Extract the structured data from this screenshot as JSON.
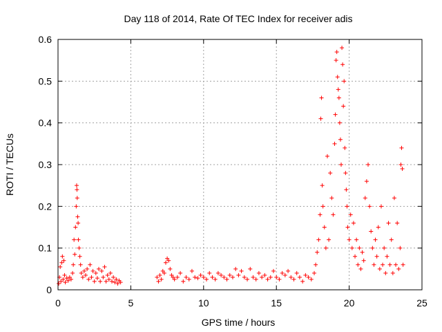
{
  "chart_data": {
    "type": "scatter",
    "title": "Day 118 of 2014, Rate Of TEC Index for receiver adis",
    "xlabel": "GPS time / hours",
    "ylabel": "ROTI / TECUs",
    "xlim": [
      0,
      25
    ],
    "ylim": [
      0,
      0.6
    ],
    "x_ticks": [
      0,
      5,
      10,
      15,
      20,
      25
    ],
    "x_tick_labels": [
      "0",
      "5",
      "10",
      "15",
      "20",
      "25"
    ],
    "y_ticks": [
      0,
      0.1,
      0.2,
      0.3,
      0.4,
      0.5,
      0.6
    ],
    "y_tick_labels": [
      "0",
      "0.1",
      "0.2",
      "0.3",
      "0.4",
      "0.5",
      "0.6"
    ],
    "grid": true,
    "marker": "+",
    "series": [
      {
        "name": "ROTI",
        "color": "#ff0000",
        "points": [
          [
            0.05,
            0.015
          ],
          [
            0.1,
            0.03
          ],
          [
            0.15,
            0.055
          ],
          [
            0.2,
            0.02
          ],
          [
            0.25,
            0.065
          ],
          [
            0.3,
            0.08
          ],
          [
            0.35,
            0.025
          ],
          [
            0.4,
            0.07
          ],
          [
            0.45,
            0.035
          ],
          [
            0.5,
            0.018
          ],
          [
            0.6,
            0.028
          ],
          [
            0.7,
            0.022
          ],
          [
            0.8,
            0.03
          ],
          [
            0.9,
            0.025
          ],
          [
            1.0,
            0.04
          ],
          [
            1.05,
            0.06
          ],
          [
            1.1,
            0.12
          ],
          [
            1.15,
            0.085
          ],
          [
            1.2,
            0.15
          ],
          [
            1.25,
            0.2
          ],
          [
            1.28,
            0.25
          ],
          [
            1.3,
            0.24
          ],
          [
            1.32,
            0.22
          ],
          [
            1.35,
            0.175
          ],
          [
            1.38,
            0.16
          ],
          [
            1.4,
            0.12
          ],
          [
            1.45,
            0.1
          ],
          [
            1.5,
            0.08
          ],
          [
            1.55,
            0.06
          ],
          [
            1.6,
            0.04
          ],
          [
            1.7,
            0.03
          ],
          [
            1.8,
            0.045
          ],
          [
            1.9,
            0.035
          ],
          [
            2.0,
            0.05
          ],
          [
            2.1,
            0.025
          ],
          [
            2.2,
            0.06
          ],
          [
            2.3,
            0.03
          ],
          [
            2.4,
            0.045
          ],
          [
            2.5,
            0.02
          ],
          [
            2.6,
            0.04
          ],
          [
            2.7,
            0.028
          ],
          [
            2.8,
            0.05
          ],
          [
            2.9,
            0.02
          ],
          [
            3.0,
            0.045
          ],
          [
            3.1,
            0.03
          ],
          [
            3.2,
            0.055
          ],
          [
            3.3,
            0.02
          ],
          [
            3.4,
            0.035
          ],
          [
            3.5,
            0.025
          ],
          [
            3.6,
            0.04
          ],
          [
            3.7,
            0.02
          ],
          [
            3.8,
            0.03
          ],
          [
            3.9,
            0.018
          ],
          [
            4.0,
            0.025
          ],
          [
            4.1,
            0.015
          ],
          [
            4.2,
            0.022
          ],
          [
            4.3,
            0.018
          ],
          [
            6.8,
            0.03
          ],
          [
            6.9,
            0.02
          ],
          [
            7.0,
            0.035
          ],
          [
            7.1,
            0.025
          ],
          [
            7.2,
            0.045
          ],
          [
            7.3,
            0.04
          ],
          [
            7.4,
            0.065
          ],
          [
            7.5,
            0.075
          ],
          [
            7.6,
            0.07
          ],
          [
            7.7,
            0.05
          ],
          [
            7.8,
            0.035
          ],
          [
            7.9,
            0.03
          ],
          [
            8.0,
            0.025
          ],
          [
            8.2,
            0.03
          ],
          [
            8.4,
            0.04
          ],
          [
            8.6,
            0.02
          ],
          [
            8.8,
            0.03
          ],
          [
            9.0,
            0.025
          ],
          [
            9.2,
            0.045
          ],
          [
            9.4,
            0.03
          ],
          [
            9.6,
            0.028
          ],
          [
            9.8,
            0.035
          ],
          [
            10.0,
            0.03
          ],
          [
            10.2,
            0.025
          ],
          [
            10.4,
            0.04
          ],
          [
            10.6,
            0.03
          ],
          [
            10.8,
            0.025
          ],
          [
            11.0,
            0.04
          ],
          [
            11.2,
            0.035
          ],
          [
            11.4,
            0.03
          ],
          [
            11.6,
            0.025
          ],
          [
            11.8,
            0.035
          ],
          [
            12.0,
            0.03
          ],
          [
            12.2,
            0.05
          ],
          [
            12.4,
            0.035
          ],
          [
            12.6,
            0.045
          ],
          [
            12.8,
            0.03
          ],
          [
            13.0,
            0.025
          ],
          [
            13.2,
            0.05
          ],
          [
            13.4,
            0.03
          ],
          [
            13.6,
            0.025
          ],
          [
            13.8,
            0.04
          ],
          [
            14.0,
            0.03
          ],
          [
            14.2,
            0.035
          ],
          [
            14.4,
            0.025
          ],
          [
            14.6,
            0.03
          ],
          [
            14.8,
            0.045
          ],
          [
            15.0,
            0.03
          ],
          [
            15.2,
            0.025
          ],
          [
            15.4,
            0.04
          ],
          [
            15.6,
            0.035
          ],
          [
            15.8,
            0.045
          ],
          [
            16.0,
            0.03
          ],
          [
            16.2,
            0.025
          ],
          [
            16.4,
            0.04
          ],
          [
            16.6,
            0.03
          ],
          [
            16.8,
            0.02
          ],
          [
            17.0,
            0.035
          ],
          [
            17.2,
            0.03
          ],
          [
            17.4,
            0.025
          ],
          [
            17.6,
            0.04
          ],
          [
            17.7,
            0.06
          ],
          [
            17.8,
            0.09
          ],
          [
            17.9,
            0.12
          ],
          [
            18.0,
            0.18
          ],
          [
            18.05,
            0.41
          ],
          [
            18.1,
            0.46
          ],
          [
            18.15,
            0.25
          ],
          [
            18.2,
            0.2
          ],
          [
            18.3,
            0.15
          ],
          [
            18.4,
            0.1
          ],
          [
            18.5,
            0.32
          ],
          [
            18.6,
            0.12
          ],
          [
            18.7,
            0.28
          ],
          [
            18.8,
            0.22
          ],
          [
            18.9,
            0.18
          ],
          [
            19.0,
            0.35
          ],
          [
            19.05,
            0.42
          ],
          [
            19.1,
            0.55
          ],
          [
            19.15,
            0.57
          ],
          [
            19.2,
            0.51
          ],
          [
            19.25,
            0.48
          ],
          [
            19.3,
            0.46
          ],
          [
            19.35,
            0.4
          ],
          [
            19.4,
            0.36
          ],
          [
            19.45,
            0.3
          ],
          [
            19.5,
            0.58
          ],
          [
            19.55,
            0.54
          ],
          [
            19.6,
            0.44
          ],
          [
            19.65,
            0.5
          ],
          [
            19.7,
            0.34
          ],
          [
            19.75,
            0.28
          ],
          [
            19.8,
            0.24
          ],
          [
            19.85,
            0.2
          ],
          [
            19.9,
            0.15
          ],
          [
            20.0,
            0.12
          ],
          [
            20.1,
            0.18
          ],
          [
            20.2,
            0.1
          ],
          [
            20.3,
            0.16
          ],
          [
            20.4,
            0.08
          ],
          [
            20.5,
            0.12
          ],
          [
            20.6,
            0.06
          ],
          [
            20.7,
            0.1
          ],
          [
            20.8,
            0.05
          ],
          [
            20.9,
            0.09
          ],
          [
            21.0,
            0.07
          ],
          [
            21.1,
            0.22
          ],
          [
            21.2,
            0.26
          ],
          [
            21.3,
            0.3
          ],
          [
            21.4,
            0.2
          ],
          [
            21.5,
            0.14
          ],
          [
            21.6,
            0.1
          ],
          [
            21.7,
            0.06
          ],
          [
            21.8,
            0.12
          ],
          [
            21.9,
            0.08
          ],
          [
            22.0,
            0.15
          ],
          [
            22.1,
            0.05
          ],
          [
            22.2,
            0.2
          ],
          [
            22.3,
            0.06
          ],
          [
            22.4,
            0.1
          ],
          [
            22.5,
            0.04
          ],
          [
            22.6,
            0.08
          ],
          [
            22.7,
            0.16
          ],
          [
            22.8,
            0.06
          ],
          [
            22.9,
            0.12
          ],
          [
            23.0,
            0.04
          ],
          [
            23.1,
            0.22
          ],
          [
            23.2,
            0.06
          ],
          [
            23.3,
            0.16
          ],
          [
            23.4,
            0.05
          ],
          [
            23.5,
            0.1
          ],
          [
            23.55,
            0.3
          ],
          [
            23.6,
            0.34
          ],
          [
            23.65,
            0.29
          ],
          [
            23.7,
            0.06
          ]
        ]
      }
    ]
  }
}
